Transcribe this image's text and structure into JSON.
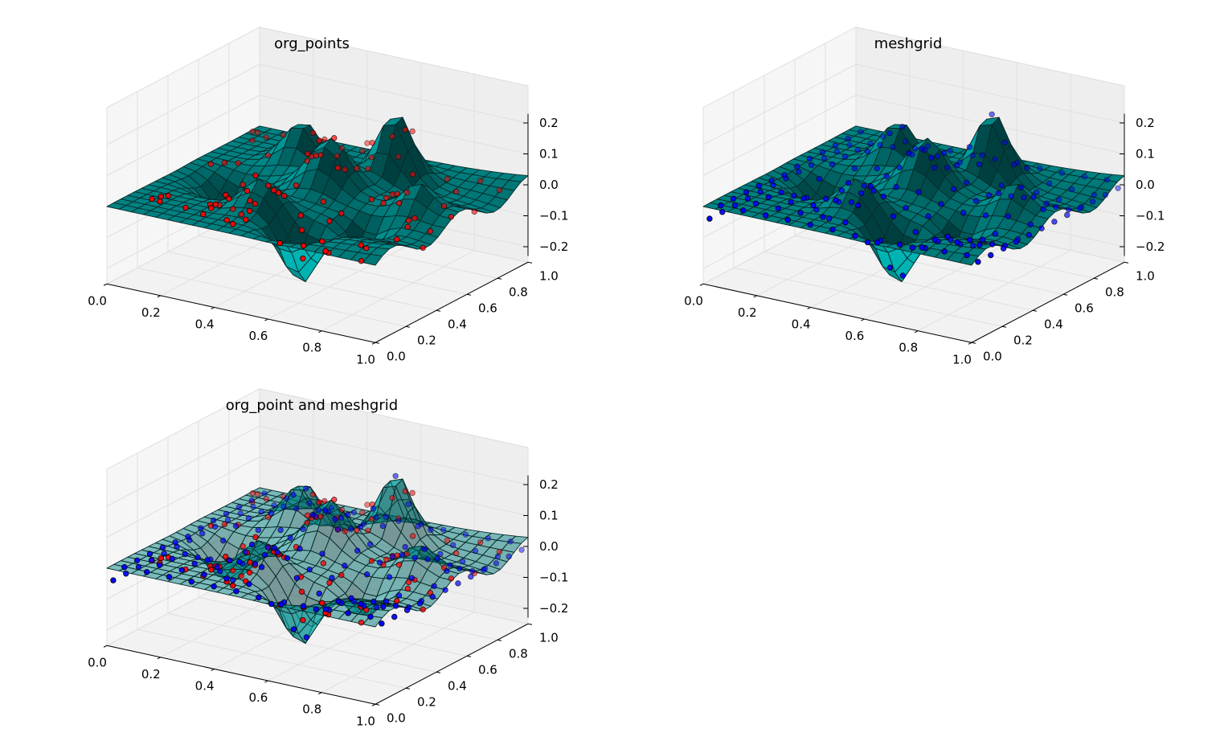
{
  "chart_data": [
    {
      "type": "surface3d",
      "title": "org_points",
      "surface": {
        "color": "#00b3b3",
        "alpha": 1.0
      },
      "scatter": [
        {
          "color": "#ff0000",
          "source": "org_points"
        }
      ],
      "x_ticks": [
        "0.0",
        "0.2",
        "0.4",
        "0.6",
        "0.8",
        "1.0"
      ],
      "y_ticks": [
        "0.0",
        "0.2",
        "0.4",
        "0.6",
        "0.8",
        "1.0"
      ],
      "z_ticks": [
        "−0.2",
        "−0.1",
        "0.0",
        "0.1",
        "0.2"
      ],
      "xlim": [
        0,
        1
      ],
      "ylim": [
        0,
        1
      ],
      "zlim": [
        -0.25,
        0.25
      ],
      "grid": true
    },
    {
      "type": "surface3d",
      "title": "meshgrid",
      "surface": {
        "color": "#00b3b3",
        "alpha": 1.0
      },
      "scatter": [
        {
          "color": "#0000ff",
          "source": "meshgrid"
        }
      ],
      "x_ticks": [
        "0.0",
        "0.2",
        "0.4",
        "0.6",
        "0.8",
        "1.0"
      ],
      "y_ticks": [
        "0.0",
        "0.2",
        "0.4",
        "0.6",
        "0.8",
        "1.0"
      ],
      "z_ticks": [
        "−0.2",
        "−0.1",
        "0.0",
        "0.1",
        "0.2"
      ],
      "xlim": [
        0,
        1
      ],
      "ylim": [
        0,
        1
      ],
      "zlim": [
        -0.25,
        0.25
      ],
      "grid": true
    },
    {
      "type": "surface3d",
      "title": "org_point and meshgrid",
      "surface": {
        "color": "#00b3b3",
        "alpha": 0.5
      },
      "scatter": [
        {
          "color": "#ff0000",
          "source": "org_points"
        },
        {
          "color": "#0000ff",
          "source": "meshgrid"
        }
      ],
      "x_ticks": [
        "0.0",
        "0.2",
        "0.4",
        "0.6",
        "0.8",
        "1.0"
      ],
      "y_ticks": [
        "0.0",
        "0.2",
        "0.4",
        "0.6",
        "0.8",
        "1.0"
      ],
      "z_ticks": [
        "−0.2",
        "−0.1",
        "0.0",
        "0.1",
        "0.2"
      ],
      "xlim": [
        0,
        1
      ],
      "ylim": [
        0,
        1
      ],
      "zlim": [
        -0.25,
        0.25
      ],
      "grid": true
    }
  ]
}
